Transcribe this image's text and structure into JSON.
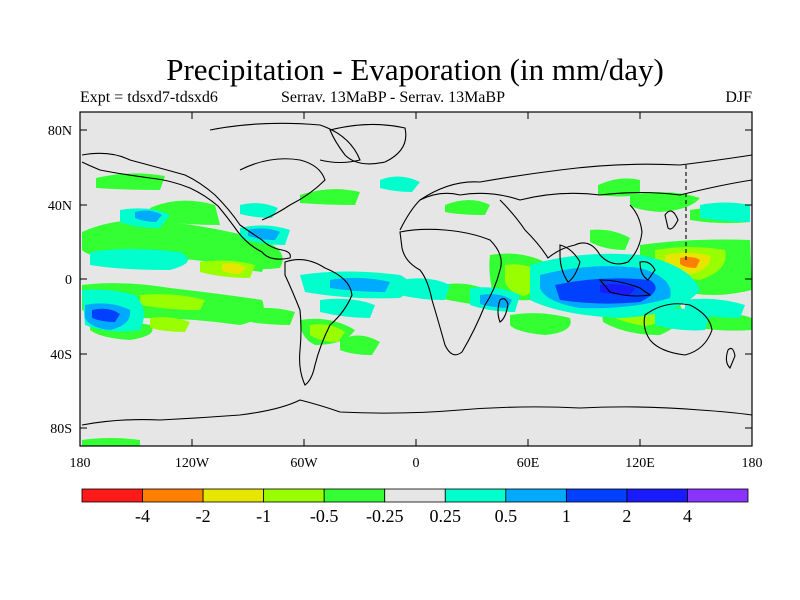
{
  "title": "Precipitation - Evaporation (in mm/day)",
  "subtitle_left": "Expt = tdsxd7-tdsxd6",
  "subtitle_center": "Serrav.   13MaBP - Serrav.   13MaBP",
  "subtitle_right": "DJF",
  "y_ticks": [
    "80N",
    "40N",
    "0",
    "40S",
    "80S"
  ],
  "x_ticks": [
    "180",
    "120W",
    "60W",
    "0",
    "60E",
    "120E",
    "180"
  ],
  "colorbar": {
    "colors": [
      "#ff1a1a",
      "#ff8000",
      "#e6e600",
      "#99ff00",
      "#33ff33",
      "#e6e6e6",
      "#00ffcc",
      "#00aaff",
      "#0040ff",
      "#1a1aff",
      "#8833ff"
    ],
    "labels": [
      "-4",
      "-2",
      "-1",
      "-0.5",
      "-0.25",
      "0.25",
      "0.5",
      "1",
      "2",
      "4"
    ]
  },
  "colors": {
    "background": "#e6e6e6",
    "neg_weak": "#33ff33",
    "neg_mid": "#99ff00",
    "neg_strong": "#e6e600",
    "neg_strongest": "#ff8000",
    "pos_weak": "#00ffcc",
    "pos_mid": "#00aaff",
    "pos_strong": "#0040ff",
    "pos_strongest": "#1a1aff"
  }
}
